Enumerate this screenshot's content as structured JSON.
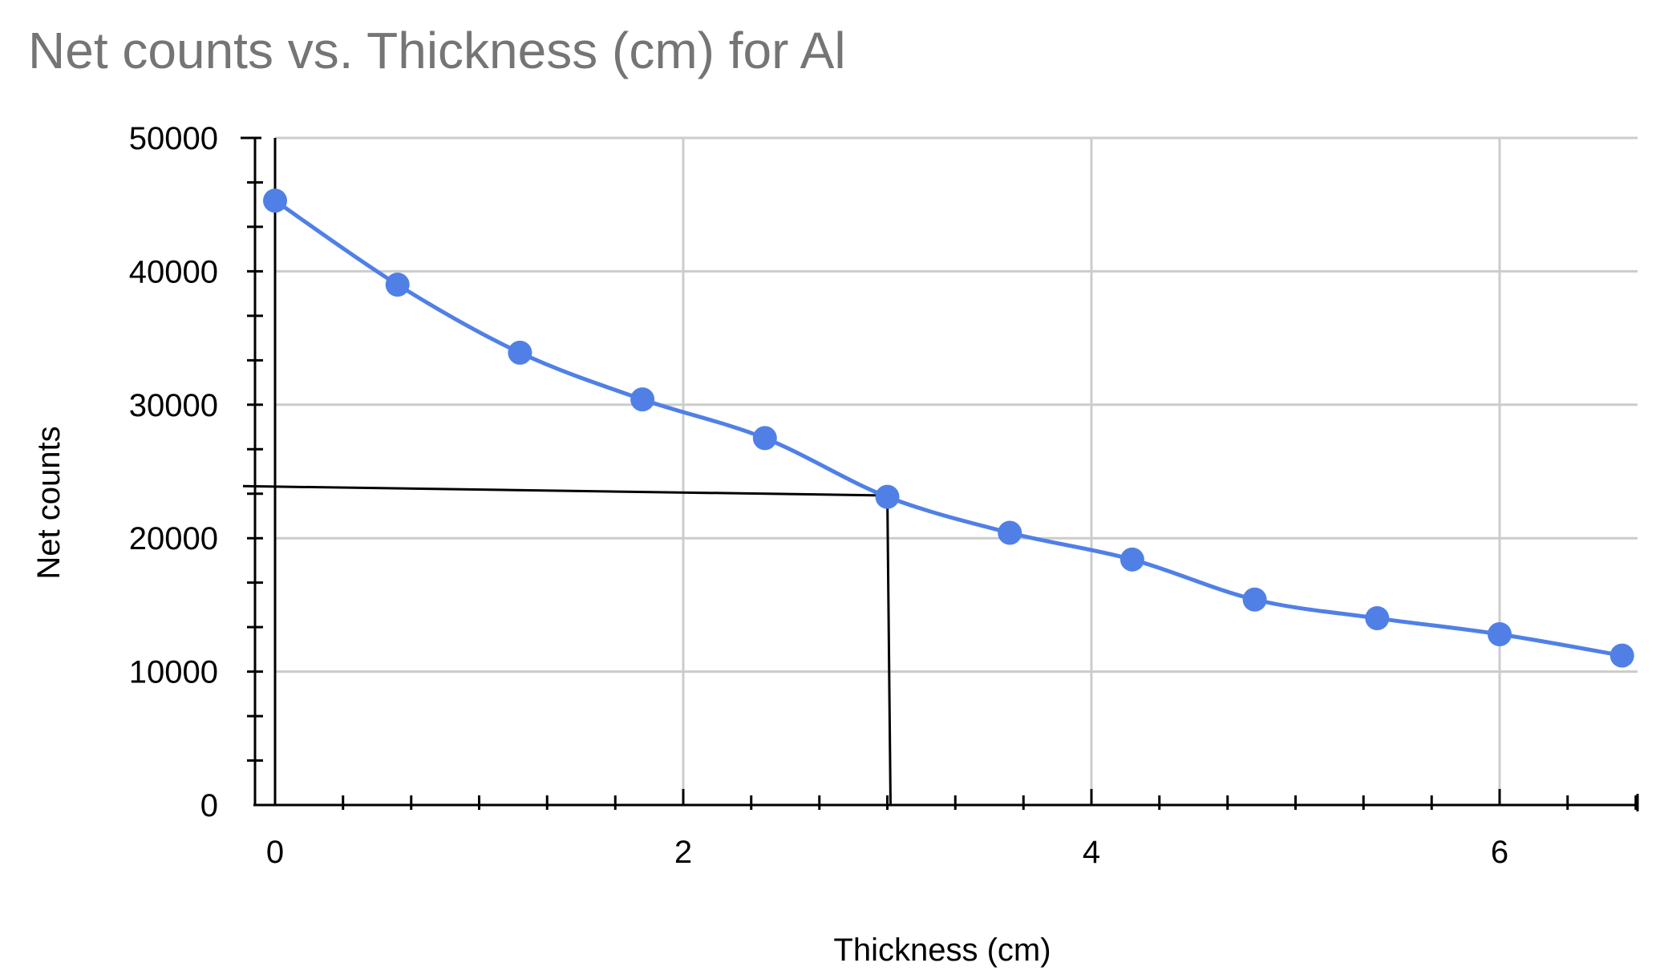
{
  "chart_data": {
    "type": "line",
    "title": "Net counts vs. Thickness (cm) for Al",
    "xlabel": "Thickness (cm)",
    "ylabel": "Net counts",
    "xlim": [
      0,
      6.7
    ],
    "ylim": [
      0,
      50000
    ],
    "x_ticks": [
      0,
      2,
      4,
      6
    ],
    "x_tick_labels": [
      "0",
      "2",
      "4",
      "6"
    ],
    "y_ticks": [
      0,
      10000,
      20000,
      30000,
      40000,
      50000
    ],
    "y_tick_labels": [
      "0",
      "10000",
      "20000",
      "30000",
      "40000",
      "50000"
    ],
    "grid": true,
    "smooth": true,
    "series": [
      {
        "color": "#5080e6",
        "points": [
          {
            "x": 0.0,
            "y": 45300
          },
          {
            "x": 0.6,
            "y": 39000
          },
          {
            "x": 1.2,
            "y": 33900
          },
          {
            "x": 1.8,
            "y": 30400
          },
          {
            "x": 2.4,
            "y": 27500
          },
          {
            "x": 3.0,
            "y": 23100
          },
          {
            "x": 3.6,
            "y": 20400
          },
          {
            "x": 4.2,
            "y": 18400
          },
          {
            "x": 4.8,
            "y": 15400
          },
          {
            "x": 5.4,
            "y": 14000
          },
          {
            "x": 6.0,
            "y": 12800
          },
          {
            "x": 6.6,
            "y": 11200
          }
        ]
      }
    ],
    "annotations": {
      "hand_drawn_axes": true,
      "guide_line": {
        "from": {
          "x": 0.0,
          "y": 23900
        },
        "corner": {
          "x": 3.0,
          "y": 23200
        },
        "to": {
          "x": 3.0,
          "y": 0
        }
      }
    }
  }
}
